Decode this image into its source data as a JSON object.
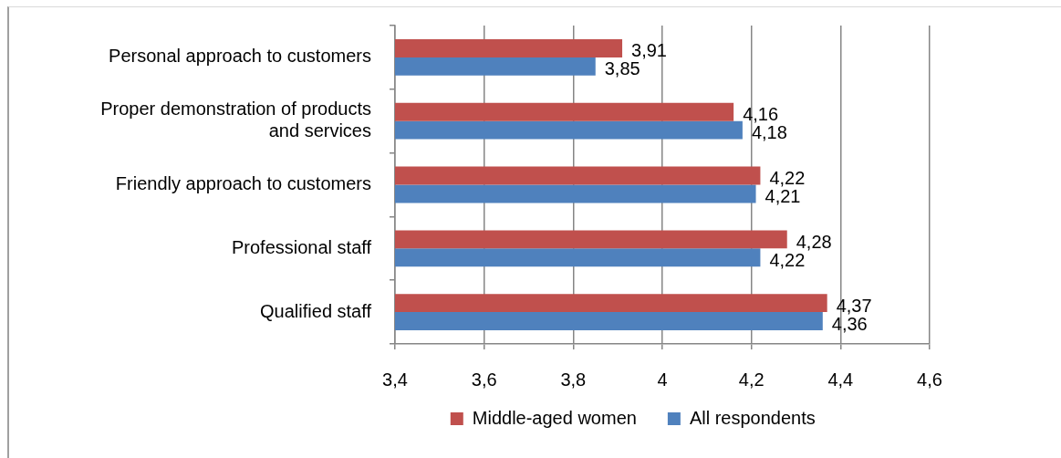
{
  "chart_data": {
    "type": "bar",
    "orientation": "horizontal",
    "categories": [
      "Personal approach to customers",
      "Proper demonstration of products and services",
      "Friendly approach to customers",
      "Professional staff",
      "Qualified staff"
    ],
    "series": [
      {
        "name": "Middle-aged women",
        "color": "#c0504d",
        "values": [
          3.91,
          4.16,
          4.22,
          4.28,
          4.37
        ],
        "value_labels": [
          "3,91",
          "4,16",
          "4,22",
          "4,28",
          "4,37"
        ]
      },
      {
        "name": "All respondents",
        "color": "#4f81bd",
        "values": [
          3.85,
          4.18,
          4.21,
          4.22,
          4.36
        ],
        "value_labels": [
          "3,85",
          "4,18",
          "4,21",
          "4,22",
          "4,36"
        ]
      }
    ],
    "xlim": [
      3.4,
      4.6
    ],
    "xticks": [
      {
        "value": 3.4,
        "label": "3,4"
      },
      {
        "value": 3.6,
        "label": "3,6"
      },
      {
        "value": 3.8,
        "label": "3,8"
      },
      4,
      {
        "value": 4.2,
        "label": "4,2"
      },
      {
        "value": 4.4,
        "label": "4,4"
      },
      {
        "value": 4.6,
        "label": "4,6"
      }
    ],
    "grid": "x",
    "legend": "bottom"
  }
}
